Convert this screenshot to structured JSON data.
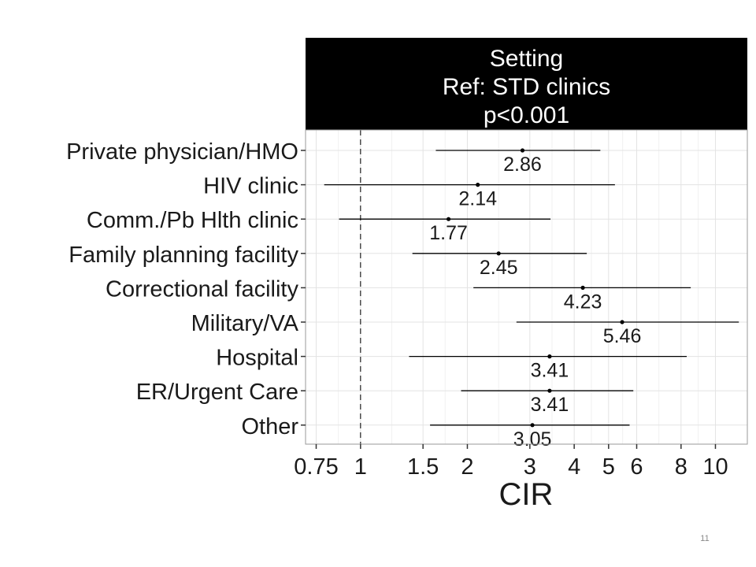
{
  "chart_data": {
    "type": "forest",
    "panel_header": [
      "Setting",
      "Ref: STD clinics",
      "p<0.001"
    ],
    "xlabel": "CIR",
    "x_scale": "log",
    "xlim": [
      0.7,
      12.3
    ],
    "x_ticks": [
      {
        "value": 0.75,
        "label": "0.75"
      },
      {
        "value": 1,
        "label": "1"
      },
      {
        "value": 1.5,
        "label": "1.5"
      },
      {
        "value": 2,
        "label": "2"
      },
      {
        "value": 3,
        "label": "3"
      },
      {
        "value": 4,
        "label": "4"
      },
      {
        "value": 5,
        "label": "5"
      },
      {
        "value": 6,
        "label": "6"
      },
      {
        "value": 8,
        "label": "8"
      },
      {
        "value": 10,
        "label": "10"
      }
    ],
    "reference_line": 1,
    "grid": true,
    "categories": [
      "Private physician/HMO",
      "HIV clinic",
      "Comm./Pb Hlth clinic",
      "Family planning facility",
      "Correctional facility",
      "Military/VA",
      "Hospital",
      "ER/Urgent Care",
      "Other"
    ],
    "estimates": [
      2.86,
      2.14,
      1.77,
      2.45,
      4.23,
      5.46,
      3.41,
      3.41,
      3.05
    ],
    "estimate_labels": [
      "2.86",
      "2.14",
      "1.77",
      "2.45",
      "4.23",
      "5.46",
      "3.41",
      "3.41",
      "3.05"
    ],
    "lower": [
      1.63,
      0.79,
      0.87,
      1.4,
      2.08,
      2.75,
      1.37,
      1.92,
      1.57
    ],
    "upper": [
      4.74,
      5.21,
      3.43,
      4.34,
      8.52,
      11.64,
      8.3,
      5.87,
      5.73
    ]
  },
  "slide_number": "11",
  "colors": {
    "header_bg": "#000000",
    "header_text": "#ffffff",
    "grid_major": "#e3e3e3",
    "grid_minor": "#f1f1f1",
    "panel_border": "#9a9a9a",
    "marks": "#000000"
  }
}
